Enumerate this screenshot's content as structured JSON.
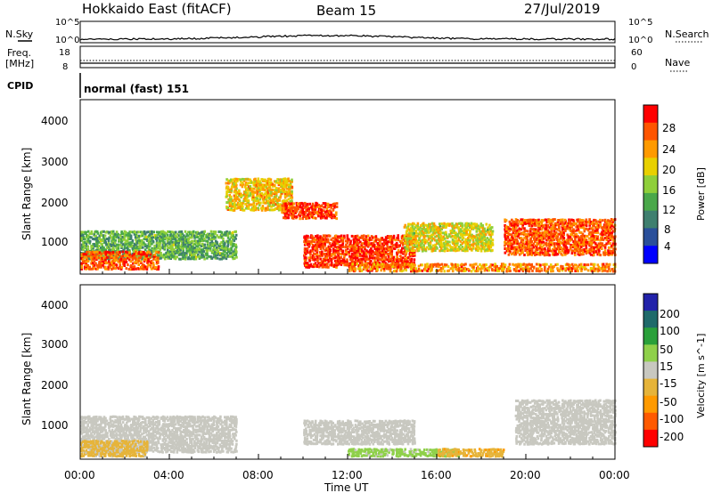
{
  "header": {
    "station": "Hokkaido East (fitACF)",
    "beam": "Beam 15",
    "date": "27/Jul/2019"
  },
  "top_panels": {
    "nsky_label": "N.Sky",
    "nsearch_label": "N.Search",
    "nsky_ticks": [
      "10^5",
      "10^0"
    ],
    "nsearch_ticks": [
      "10^5",
      "10^0"
    ],
    "freq_label": "Freq.",
    "freq_unit": "[MHz]",
    "freq_ticks": [
      "18",
      "8"
    ],
    "nave_label": "Nave",
    "nave_ticks": [
      "60",
      "0"
    ],
    "cpid_label": "CPID",
    "cpid_text": "normal (fast) 151"
  },
  "colors": {
    "power_scale": [
      "#0000ff",
      "#2a4f9a",
      "#3f7f6f",
      "#4aa84a",
      "#8fcf3a",
      "#e8d000",
      "#ff9a00",
      "#ff5500",
      "#ff0000"
    ],
    "velocity_scale": [
      "#2222aa",
      "#1f6a6a",
      "#2aa03a",
      "#8fd04a",
      "#c8c8c0",
      "#e6b43a",
      "#ff9a00",
      "#ff5a00",
      "#ff0000"
    ]
  },
  "chart_data": [
    {
      "type": "heatmap",
      "name": "power",
      "ylabel": "Slant Range [km]",
      "yticks": [
        "4000",
        "3000",
        "2000",
        "1000"
      ],
      "colorbar_label": "Power [dB]",
      "colorbar_ticks": [
        "28",
        "24",
        "20",
        "16",
        "12",
        "8",
        "4"
      ],
      "echo_regions": [
        {
          "t0": 0.0,
          "t1": 7.0,
          "r0": 600,
          "r1": 1300,
          "value_db": 12
        },
        {
          "t0": 0.0,
          "t1": 3.5,
          "r0": 350,
          "r1": 800,
          "value_db": 26
        },
        {
          "t0": 6.5,
          "t1": 9.5,
          "r0": 1800,
          "r1": 2600,
          "value_db": 20
        },
        {
          "t0": 9.0,
          "t1": 11.5,
          "r0": 1600,
          "r1": 2000,
          "value_db": 28
        },
        {
          "t0": 10.0,
          "t1": 15.0,
          "r0": 400,
          "r1": 1200,
          "value_db": 28
        },
        {
          "t0": 14.5,
          "t1": 18.5,
          "r0": 800,
          "r1": 1500,
          "value_db": 18
        },
        {
          "t0": 12.0,
          "t1": 24.0,
          "r0": 300,
          "r1": 500,
          "value_db": 24
        },
        {
          "t0": 19.0,
          "t1": 24.0,
          "r0": 700,
          "r1": 1600,
          "value_db": 26
        }
      ]
    },
    {
      "type": "heatmap",
      "name": "velocity",
      "ylabel": "Slant Range [km]",
      "yticks": [
        "4000",
        "3000",
        "2000",
        "1000"
      ],
      "colorbar_label": "Velocity [m s^-1]",
      "colorbar_ticks": [
        "200",
        "100",
        "50",
        "15",
        "-15",
        "-50",
        "-100",
        "-200"
      ],
      "echo_regions": [
        {
          "t0": 0.0,
          "t1": 7.0,
          "r0": 400,
          "r1": 1300,
          "value_ms": 0
        },
        {
          "t0": 0.0,
          "t1": 3.0,
          "r0": 300,
          "r1": 700,
          "value_ms": -40
        },
        {
          "t0": 12.0,
          "t1": 17.0,
          "r0": 300,
          "r1": 500,
          "value_ms": 40
        },
        {
          "t0": 16.0,
          "t1": 19.0,
          "r0": 300,
          "r1": 500,
          "value_ms": -60
        },
        {
          "t0": 10.0,
          "t1": 15.0,
          "r0": 600,
          "r1": 1200,
          "value_ms": 0
        },
        {
          "t0": 19.5,
          "t1": 24.0,
          "r0": 600,
          "r1": 1700,
          "value_ms": 0
        }
      ]
    }
  ],
  "xaxis": {
    "label": "Time UT",
    "ticks": [
      "00:00",
      "04:00",
      "08:00",
      "12:00",
      "16:00",
      "20:00",
      "00:00"
    ]
  }
}
